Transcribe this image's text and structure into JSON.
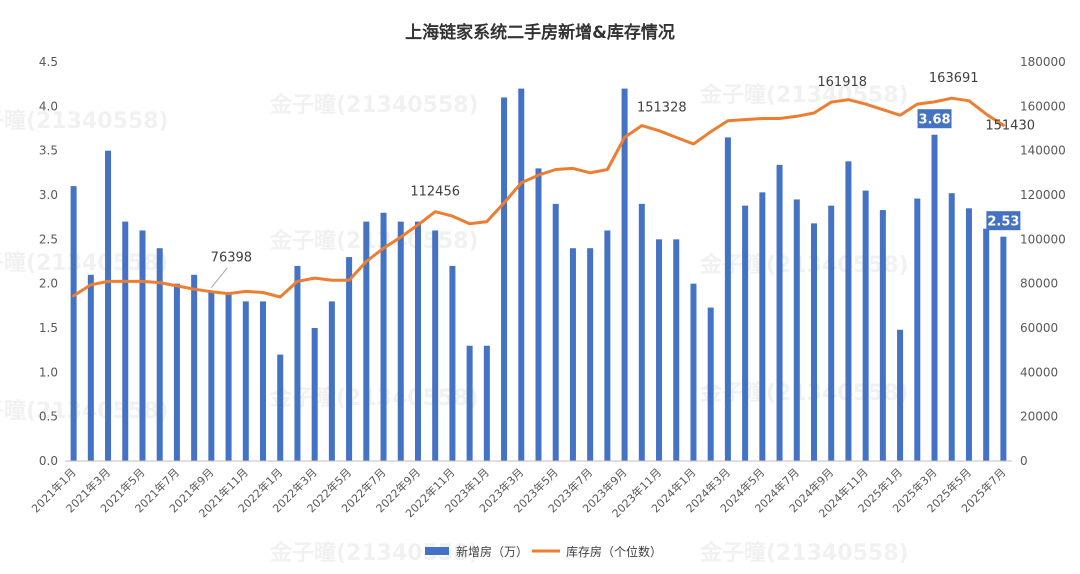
{
  "chart_data": {
    "type": "bar",
    "title": "上海链家系统二手房新增&库存情况",
    "categories": [
      "2021年1月",
      "2021年2月",
      "2021年3月",
      "2021年4月",
      "2021年5月",
      "2021年6月",
      "2021年7月",
      "2021年8月",
      "2021年9月",
      "2021年10月",
      "2021年11月",
      "2021年12月",
      "2022年1月",
      "2022年2月",
      "2022年3月",
      "2022年4月",
      "2022年5月",
      "2022年6月",
      "2022年7月",
      "2022年8月",
      "2022年9月",
      "2022年10月",
      "2022年11月",
      "2022年12月",
      "2023年1月",
      "2023年2月",
      "2023年3月",
      "2023年4月",
      "2023年5月",
      "2023年6月",
      "2023年7月",
      "2023年8月",
      "2023年9月",
      "2023年10月",
      "2023年11月",
      "2023年12月",
      "2024年1月",
      "2024年2月",
      "2024年3月",
      "2024年4月",
      "2024年5月",
      "2024年6月",
      "2024年7月",
      "2024年8月",
      "2024年9月",
      "2024年10月",
      "2024年11月",
      "2024年12月",
      "2025年1月",
      "2025年2月",
      "2025年3月",
      "2025年4月",
      "2025年5月",
      "2025年6月",
      "2025年7月"
    ],
    "x_tick_labels": [
      "2021年1月",
      "2021年3月",
      "2021年5月",
      "2021年7月",
      "2021年9月",
      "2021年11月",
      "2022年1月",
      "2022年3月",
      "2022年5月",
      "2022年7月",
      "2022年9月",
      "2022年11月",
      "2023年1月",
      "2023年3月",
      "2023年5月",
      "2023年7月",
      "2023年9月",
      "2023年11月",
      "2024年1月",
      "2024年3月",
      "2024年5月",
      "2024年7月",
      "2024年9月",
      "2024年11月",
      "2025年1月",
      "2025年3月",
      "2025年5月",
      "2025年7月"
    ],
    "series": [
      {
        "name": "新增房（万）",
        "kind": "bar",
        "axis": "left",
        "color": "#4472C4",
        "values": [
          3.1,
          2.1,
          3.5,
          2.7,
          2.6,
          2.4,
          2.0,
          2.1,
          1.9,
          1.9,
          1.8,
          1.8,
          1.2,
          2.2,
          1.5,
          1.8,
          2.3,
          2.7,
          2.8,
          2.7,
          2.7,
          2.6,
          2.2,
          1.3,
          1.3,
          4.1,
          4.2,
          3.3,
          2.9,
          2.4,
          2.4,
          2.6,
          4.2,
          2.9,
          2.5,
          2.5,
          2.0,
          1.73,
          3.65,
          2.88,
          3.03,
          3.34,
          2.95,
          2.68,
          2.88,
          3.38,
          3.05,
          2.83,
          1.48,
          2.96,
          3.68,
          3.02,
          2.85,
          2.62,
          2.53
        ]
      },
      {
        "name": "库存房（个位数）",
        "kind": "line",
        "axis": "right",
        "color": "#ED7D31",
        "values": [
          74500,
          79500,
          81000,
          81000,
          81000,
          80500,
          79000,
          77500,
          76398,
          75500,
          76500,
          76000,
          74000,
          81000,
          82500,
          81500,
          81500,
          90000,
          96000,
          101000,
          106500,
          112456,
          110500,
          107000,
          108000,
          116500,
          125500,
          129000,
          131500,
          132000,
          130000,
          131500,
          146000,
          151328,
          149000,
          146000,
          143000,
          148500,
          153500,
          154000,
          154500,
          154500,
          155500,
          157000,
          161918,
          163000,
          161000,
          158500,
          156000,
          161000,
          162000,
          163691,
          162500,
          156500,
          151430
        ]
      }
    ],
    "y_left": {
      "min": 0,
      "max": 4.5,
      "ticks": [
        "0.0",
        "0.5",
        "1.0",
        "1.5",
        "2.0",
        "2.5",
        "3.0",
        "3.5",
        "4.0",
        "4.5"
      ]
    },
    "y_right": {
      "min": 0,
      "max": 180000,
      "ticks": [
        "0",
        "20000",
        "40000",
        "60000",
        "80000",
        "100000",
        "120000",
        "140000",
        "160000",
        "180000"
      ]
    },
    "annotations": {
      "line_labels": [
        {
          "index": 8,
          "text": "76398"
        },
        {
          "index": 21,
          "text": "112456"
        },
        {
          "index": 33,
          "text": "151328"
        },
        {
          "index": 44,
          "text": "161918"
        },
        {
          "index": 51,
          "text": "163691"
        },
        {
          "index": 54,
          "text": "151430"
        }
      ],
      "bar_labels": [
        {
          "index": 50,
          "text": "3.68"
        },
        {
          "index": 54,
          "text": "2.53"
        }
      ]
    },
    "legend": {
      "position": "bottom",
      "items": [
        "新增房（万）",
        "库存房（个位数）"
      ]
    },
    "grid": false,
    "watermark": "金子曈(21340558)"
  }
}
